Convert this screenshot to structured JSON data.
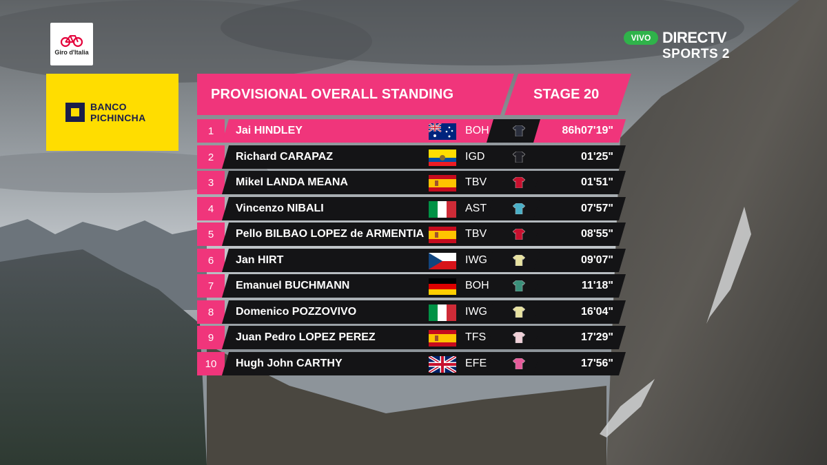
{
  "branding": {
    "giro_logo_text": "Giro d'Italia",
    "sponsor_line1": "BANCO",
    "sponsor_line2": "PICHINCHA",
    "live_badge": "VIVO",
    "broadcaster_line1": "DIRECTV",
    "broadcaster_line2": "SPORTS 2"
  },
  "standings": {
    "title": "PROVISIONAL OVERALL STANDING",
    "stage": "STAGE 20",
    "rows": [
      {
        "pos": "1",
        "name": "Jai HINDLEY",
        "country": "australia",
        "team": "BOH",
        "jersey_color": "#2b2f3d",
        "time": "86h07'19\""
      },
      {
        "pos": "2",
        "name": "Richard CARAPAZ",
        "country": "ecuador",
        "team": "IGD",
        "jersey_color": "#1e1e24",
        "time": "01'25\""
      },
      {
        "pos": "3",
        "name": "Mikel LANDA MEANA",
        "country": "spain",
        "team": "TBV",
        "jersey_color": "#c8102e",
        "time": "01'51\""
      },
      {
        "pos": "4",
        "name": "Vincenzo NIBALI",
        "country": "italy",
        "team": "AST",
        "jersey_color": "#4ab0c8",
        "time": "07'57\""
      },
      {
        "pos": "5",
        "name": "Pello BILBAO LOPEZ de ARMENTIA",
        "country": "spain",
        "team": "TBV",
        "jersey_color": "#c8102e",
        "time": "08'55\""
      },
      {
        "pos": "6",
        "name": "Jan HIRT",
        "country": "czech",
        "team": "IWG",
        "jersey_color": "#e8e2a0",
        "time": "09'07\""
      },
      {
        "pos": "7",
        "name": "Emanuel BUCHMANN",
        "country": "germany",
        "team": "BOH",
        "jersey_color": "#3a8f7a",
        "time": "11'18\""
      },
      {
        "pos": "8",
        "name": "Domenico POZZOVIVO",
        "country": "italy",
        "team": "IWG",
        "jersey_color": "#e8e2a0",
        "time": "16'04\""
      },
      {
        "pos": "9",
        "name": "Juan Pedro LOPEZ PEREZ",
        "country": "spain",
        "team": "TFS",
        "jersey_color": "#f0d0d8",
        "time": "17'29\""
      },
      {
        "pos": "10",
        "name": "Hugh John CARTHY",
        "country": "uk",
        "team": "EFE",
        "jersey_color": "#e65a9a",
        "time": "17'56\""
      }
    ]
  },
  "colors": {
    "accent_pink": "#f0357b",
    "row_dark": "#141416",
    "sponsor_yellow": "#ffdd00",
    "live_green": "#2fb34a"
  }
}
